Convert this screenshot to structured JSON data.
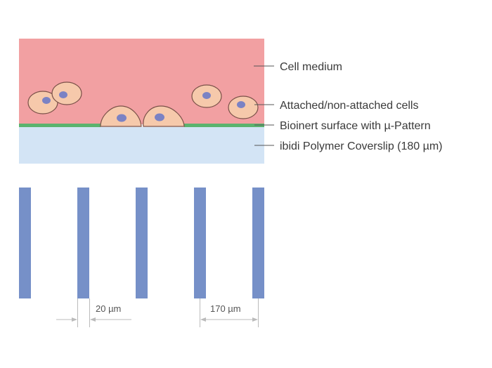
{
  "labels": {
    "medium": "Cell medium",
    "cells": "Attached/non-attached cells",
    "surface": "Bioinert surface with µ-Pattern",
    "coverslip": "ibidi Polymer Coverslip (180 µm)"
  },
  "dimensions": {
    "gap": "20 µm",
    "pitch": "170 µm"
  },
  "colors": {
    "medium": "#f2a0a2",
    "surface": "#5bb36e",
    "coverslip": "#d3e4f5",
    "cell": "#f6c9ab",
    "nucleus": "#7b82c4",
    "stripe": "#7690c8"
  }
}
